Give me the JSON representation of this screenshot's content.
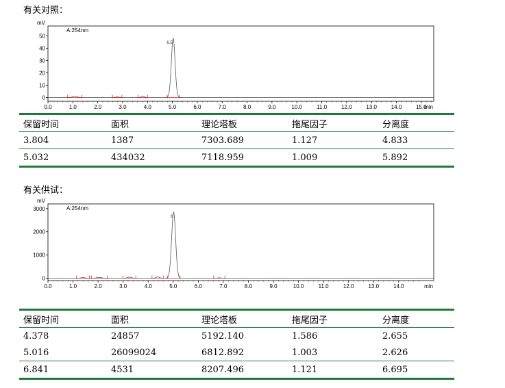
{
  "section1": {
    "title": "有关对照："
  },
  "section2": {
    "title": "有关供试："
  },
  "chart_data": [
    {
      "type": "line",
      "ylabel": "mV",
      "xlabel": "min",
      "annotation": "A:254nm",
      "xlim": [
        0,
        15.5
      ],
      "ylim": [
        -3,
        58
      ],
      "xticks": [
        "0.0",
        "1.0",
        "2.0",
        "3.0",
        "4.0",
        "5.0",
        "6.0",
        "7.0",
        "8.0",
        "9.0",
        "10.0",
        "11.0",
        "12.0",
        "13.0",
        "14.0",
        "15.0"
      ],
      "yticks": [
        "0",
        "10",
        "20",
        "30",
        "40",
        "50"
      ],
      "peaks": [
        {
          "rt": 1.08,
          "height": 1.2,
          "width": 0.09
        },
        {
          "rt": 2.78,
          "height": 0.6,
          "width": 0.06
        },
        {
          "rt": 3.804,
          "height": 1.3,
          "width": 0.06
        },
        {
          "rt": 5.032,
          "height": 48,
          "width": 0.075
        }
      ],
      "peak_labels": [
        {
          "rt": 5.032,
          "text": "6.5"
        }
      ]
    },
    {
      "type": "line",
      "ylabel": "mV",
      "xlabel": "min",
      "annotation": "A:254nm",
      "xlim": [
        0,
        15.4
      ],
      "ylim": [
        -100,
        3200
      ],
      "xticks": [
        "0.0",
        "1.0",
        "2.0",
        "3.0",
        "4.0",
        "5.0",
        "6.0",
        "7.0",
        "8.0",
        "9.0",
        "10.0",
        "11.0",
        "12.0",
        "13.0",
        "14.0"
      ],
      "xtick_unit": "min",
      "yticks": [
        "0",
        "1000",
        "2000",
        "3000"
      ],
      "peaks": [
        {
          "rt": 1.4,
          "height": 30,
          "width": 0.08
        },
        {
          "rt": 2.05,
          "height": 40,
          "width": 0.1
        },
        {
          "rt": 3.25,
          "height": 50,
          "width": 0.08
        },
        {
          "rt": 4.378,
          "height": 60,
          "width": 0.07
        },
        {
          "rt": 5.016,
          "height": 2850,
          "width": 0.08
        },
        {
          "rt": 6.841,
          "height": 20,
          "width": 0.07
        }
      ],
      "peak_labels": [
        {
          "rt": 5.016,
          "text": "6"
        }
      ]
    }
  ],
  "table1": {
    "headers": [
      "保留时间",
      "面积",
      "理论塔板",
      "拖尾因子",
      "分离度"
    ],
    "rows": [
      [
        "3.804",
        "1387",
        "7303.689",
        "1.127",
        "4.833"
      ],
      [
        "5.032",
        "434032",
        "7118.959",
        "1.009",
        "5.892"
      ]
    ]
  },
  "table2": {
    "headers": [
      "保留时间",
      "面积",
      "理论塔板",
      "拖尾因子",
      "分离度"
    ],
    "rows": [
      [
        "4.378",
        "24857",
        "5192.140",
        "1.586",
        "2.655"
      ],
      [
        "5.016",
        "26099024",
        "6812.892",
        "1.003",
        "2.626"
      ],
      [
        "6.841",
        "4531",
        "8207.496",
        "1.121",
        "6.695"
      ]
    ]
  }
}
